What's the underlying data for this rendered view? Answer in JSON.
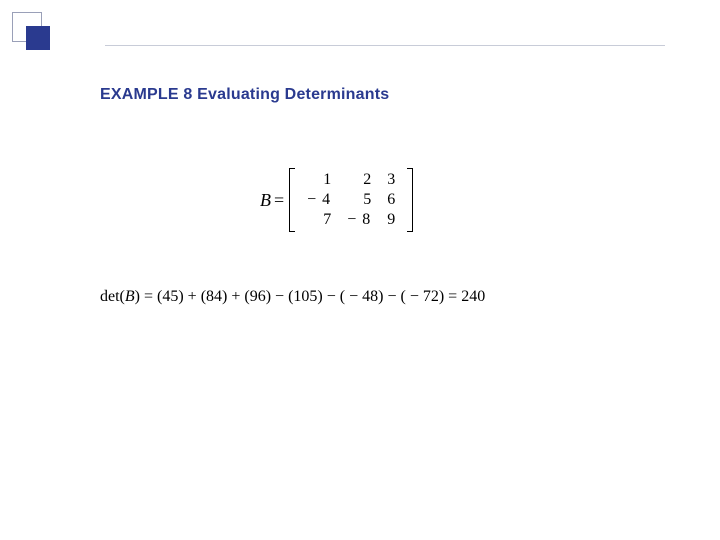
{
  "decor": {
    "accent_color": "#2a3a8f",
    "box_border_color": "#9aa0b8",
    "line_color": "#c8ccd8",
    "background_color": "#ffffff"
  },
  "title": "EXAMPLE 8 Evaluating Determinants",
  "matrix": {
    "label_B": "B",
    "equals": "=",
    "rows": [
      [
        "1",
        "2",
        "3"
      ],
      [
        "− 4",
        "5",
        "6"
      ],
      [
        "7",
        "− 8",
        "9"
      ]
    ]
  },
  "det": {
    "prefix": "det(",
    "var": "B",
    "suffix": ")",
    "eq": " = ",
    "t1": "(45)",
    "plus1": " + ",
    "t2": "(84)",
    "plus2": " + ",
    "t3": "(96)",
    "minus1": " − ",
    "t4": "(105)",
    "minus2": " − ",
    "t5": "( − 48)",
    "minus3": " − ",
    "t6": "( − 72)",
    "eq2": " = ",
    "result": "240"
  }
}
